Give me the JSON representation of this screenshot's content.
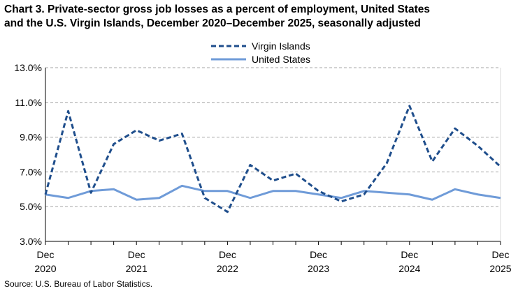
{
  "title_lines": [
    "Chart 3. Private-sector gross job losses as a percent of employment, United States",
    "and the U.S. Virgin Islands, December 2020–December 2025, seasonally adjusted"
  ],
  "source": "Source: U.S. Bureau of Labor Statistics.",
  "chart_data": {
    "type": "line",
    "title": "Chart 3. Private-sector gross job losses as a percent of employment, United States and the U.S. Virgin Islands, December 2020–December 2025, seasonally adjusted",
    "xlabel": "",
    "ylabel": "",
    "x": [
      "Dec 2020",
      "Mar 2021",
      "Jun 2021",
      "Sep 2021",
      "Dec 2021",
      "Mar 2022",
      "Jun 2022",
      "Sep 2022",
      "Dec 2022",
      "Mar 2023",
      "Jun 2023",
      "Sep 2023",
      "Dec 2023",
      "Mar 2024",
      "Jun 2024",
      "Sep 2024",
      "Dec 2024",
      "Mar 2025",
      "Jun 2025",
      "Sep 2025",
      "Dec 2025"
    ],
    "x_tick_labels": [
      {
        "month": "Dec",
        "year": "2020"
      },
      {
        "month": "Dec",
        "year": "2021"
      },
      {
        "month": "Dec",
        "year": "2022"
      },
      {
        "month": "Dec",
        "year": "2023"
      },
      {
        "month": "Dec",
        "year": "2024"
      },
      {
        "month": "Dec",
        "year": "2025"
      }
    ],
    "y_ticks": [
      "3.0%",
      "5.0%",
      "7.0%",
      "9.0%",
      "11.0%",
      "13.0%"
    ],
    "y_tick_values": [
      3,
      5,
      7,
      9,
      11,
      13
    ],
    "ylim": [
      3,
      13
    ],
    "grid": "horizontal dashed",
    "legend_position": "top-center",
    "series": [
      {
        "name": "Virgin Islands",
        "style": "dashed",
        "color": "#1f4e8c",
        "values": [
          5.7,
          10.5,
          5.8,
          8.6,
          9.4,
          8.8,
          9.2,
          5.5,
          4.7,
          7.4,
          6.5,
          6.9,
          5.9,
          5.3,
          5.7,
          7.5,
          10.8,
          7.6,
          9.5,
          8.5,
          7.3
        ]
      },
      {
        "name": "United States",
        "style": "solid",
        "color": "#6f9bd8",
        "values": [
          5.7,
          5.5,
          5.9,
          6.0,
          5.4,
          5.5,
          6.2,
          5.9,
          5.9,
          5.5,
          5.9,
          5.9,
          5.7,
          5.5,
          5.9,
          5.8,
          5.7,
          5.4,
          6.0,
          5.7,
          5.5
        ]
      }
    ]
  }
}
